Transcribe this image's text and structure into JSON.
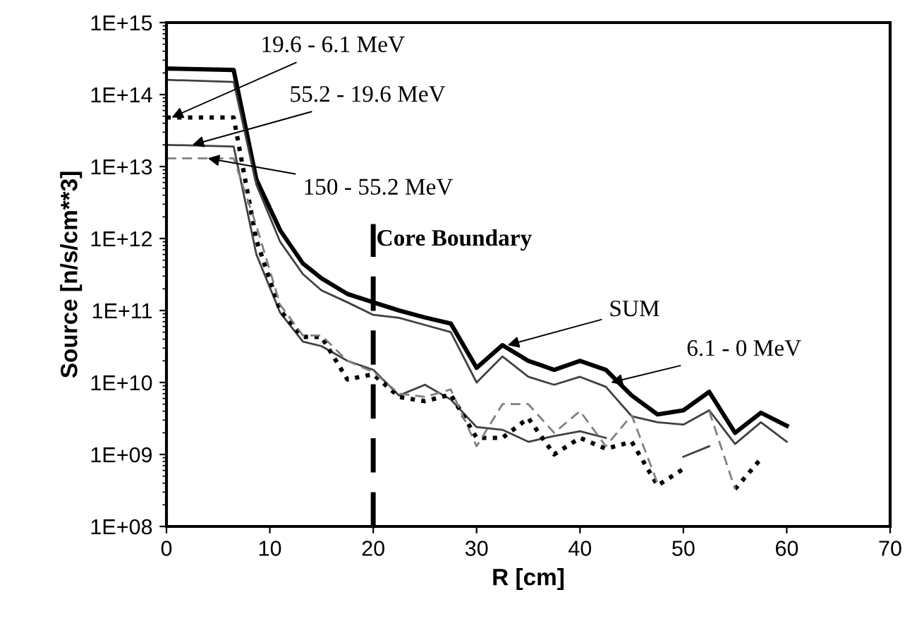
{
  "chart_data": {
    "type": "line",
    "xlabel": "R [cm]",
    "ylabel": "Source [n/s/cm**3]",
    "log": "y",
    "x": [
      0,
      6.5,
      8.7,
      11,
      13.2,
      15,
      17.5,
      20,
      22.5,
      25,
      27.5,
      30,
      32.5,
      35,
      37.5,
      40,
      42.5,
      45,
      47.5,
      50,
      52.5,
      55,
      57.5,
      60
    ],
    "series": [
      {
        "color": "#000000",
        "line_style": "solid",
        "values": [
          230000000000000.0,
          220000000000000.0,
          6600000000000.0,
          1300000000000.0,
          450000000000.0,
          280000000000.0,
          170000000000.0,
          130000000000.0,
          100000000000.0,
          80000000000.0,
          66000000000.0,
          16000000000.0,
          33000000000.0,
          20000000000.0,
          15000000000.0,
          20000000000.0,
          15000000000.0,
          6600000000.0,
          3600000000.0,
          4100000000.0,
          7400000000.0,
          2000000000.0,
          3800000000.0,
          2500000000.0
        ]
      },
      {
        "color": "#404040",
        "line_style": "solid",
        "values": [
          160000000000000.0,
          150000000000000.0,
          5600000000000.0,
          900000000000.0,
          320000000000.0,
          190000000000.0,
          130000000000.0,
          87000000000.0,
          79000000000.0,
          63000000000.0,
          50000000000.0,
          10000000000.0,
          23000000000.0,
          12000000000.0,
          9300000000.0,
          12000000000.0,
          8700000000.0,
          3400000000.0,
          2800000000.0,
          2600000000.0,
          4100000000.0,
          1400000000.0,
          2800000000.0,
          1500000000.0
        ]
      },
      {
        "color": "#404040",
        "line_style": "solid",
        "values": [
          20000000000000.0,
          19000000000000.0,
          600000000000.0,
          93000000000.0,
          37000000000.0,
          32000000000.0,
          20000000000.0,
          15000000000.0,
          6600000000.0,
          9300000000.0,
          5800000000.0,
          2400000000.0,
          2200000000.0,
          1500000000.0,
          1800000000.0,
          2100000000.0,
          1700000000.0,
          null,
          null,
          930000000.0,
          1300000000.0,
          null,
          null,
          null
        ]
      },
      {
        "color": "#000000",
        "line_style": "dotted",
        "values": [
          48000000000000.0,
          48000000000000.0,
          950000000000.0,
          100000000000.0,
          43000000000.0,
          43000000000.0,
          11000000000.0,
          13000000000.0,
          6300000000.0,
          5500000000.0,
          6800000000.0,
          1700000000.0,
          1700000000.0,
          3200000000.0,
          1000000000.0,
          1700000000.0,
          1200000000.0,
          1500000000.0,
          370000000.0,
          630000000.0,
          null,
          330000000.0,
          870000000.0,
          null
        ]
      },
      {
        "color": "#808080",
        "line_style": "dashed",
        "values": [
          13000000000000.0,
          13000000000000.0,
          1500000000000.0,
          120000000000.0,
          45000000000.0,
          45000000000.0,
          20000000000.0,
          14000000000.0,
          7000000000.0,
          6300000000.0,
          8000000000.0,
          1300000000.0,
          5000000000.0,
          5000000000.0,
          2000000000.0,
          4000000000.0,
          1300000000.0,
          3500000000.0,
          400000000.0,
          null,
          4000000000.0,
          330000000.0,
          null,
          null
        ]
      }
    ],
    "xlim": [
      0,
      70
    ],
    "xticks": [
      0,
      10,
      20,
      30,
      40,
      50,
      60,
      70
    ],
    "ylim": [
      100000000.0,
      1000000000000000.0
    ],
    "yticks": [
      {
        "value": 100000000.0,
        "label": "1E+08"
      },
      {
        "value": 1000000000.0,
        "label": "1E+09"
      },
      {
        "value": 10000000000.0,
        "label": "1E+10"
      },
      {
        "value": 100000000000.0,
        "label": "1E+11"
      },
      {
        "value": 1000000000000.0,
        "label": "1E+12"
      },
      {
        "value": 10000000000000.0,
        "label": "1E+13"
      },
      {
        "value": 100000000000000.0,
        "label": "1E+14"
      },
      {
        "value": 1000000000000000.0,
        "label": "1E+15"
      }
    ],
    "ref_lines": [
      {
        "axis": "x",
        "value": 20,
        "label": "Core Boundary",
        "color": "#000000",
        "line_style": "dashed"
      }
    ],
    "annotations": [
      {
        "text": "19.6 - 6.1 MeV",
        "x": 0.5,
        "y": 48000000000000.0
      },
      {
        "text": "55.2 - 19.6 MeV",
        "x": 2.5,
        "y": 20000000000000.0
      },
      {
        "text": "150 - 55.2 MeV",
        "x": 4,
        "y": 13000000000000.0
      },
      {
        "text": "SUM",
        "x": 33,
        "y": 33000000000.0
      },
      {
        "text": "6.1 - 0 MeV",
        "x": 43,
        "y": 10000000000.0
      }
    ],
    "grid": false
  }
}
